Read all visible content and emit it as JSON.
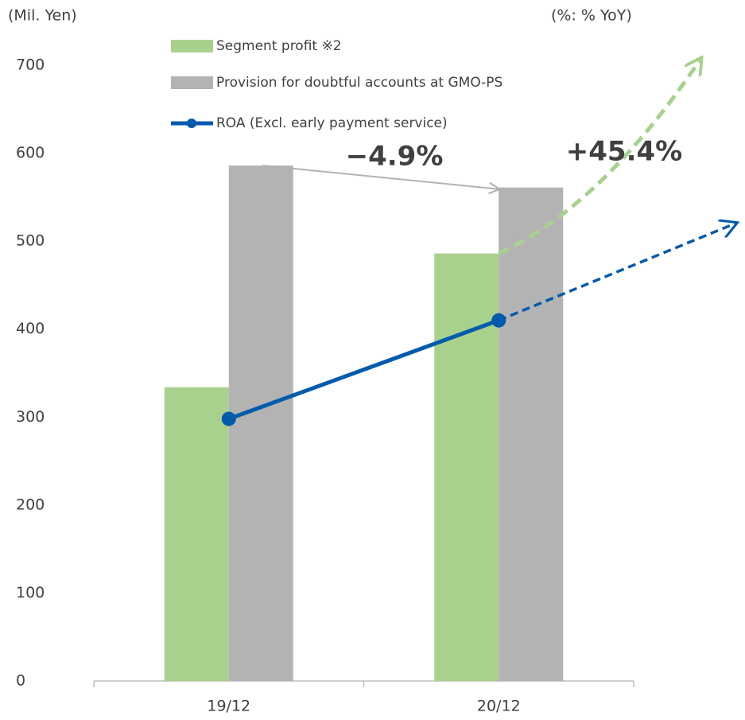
{
  "chart_data": {
    "type": "bar",
    "unit_label": "(Mil. Yen)",
    "secondary_label": "(%: % YoY)",
    "categories": [
      "19/12",
      "20/12"
    ],
    "series": [
      {
        "name": "Segment profit ※2",
        "color": "#a9d18e",
        "values": [
          334,
          486
        ]
      },
      {
        "name": "Provision for doubtful accounts at GMO-PS",
        "color": "#b3b3b3",
        "values": [
          586,
          561
        ]
      },
      {
        "name": "ROA (Excl. early payment service)",
        "type": "line",
        "color": "#005bac",
        "values": [
          298,
          410
        ]
      }
    ],
    "annotations": [
      "−4.9%",
      "+45.4%"
    ],
    "ylim": [
      0,
      700
    ],
    "yticks": [
      0,
      100,
      200,
      300,
      400,
      500,
      600,
      700
    ],
    "grid": false,
    "legend": "top"
  }
}
